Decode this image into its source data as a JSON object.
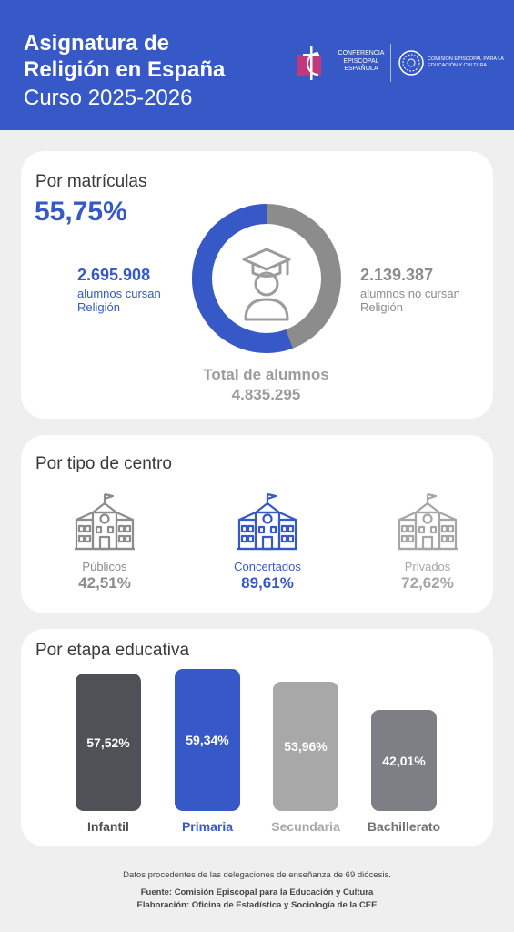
{
  "header": {
    "title_line1": "Asignatura de",
    "title_line2": "Religión en España",
    "subtitle": "Curso 2025-2026",
    "logo1_text": "CONFERENCIA EPISCOPAL ESPAÑOLA",
    "logo2_text": "COMISIÓN EPISCOPAL PARA LA EDUCACIÓN Y CULTURA"
  },
  "matriculas": {
    "title": "Por matrículas",
    "percent": "55,75%",
    "cursan_num": "2.695.908",
    "cursan_desc": "alumnos cursan Religión",
    "no_cursan_num": "2.139.387",
    "no_cursan_desc": "alumnos no cursan Religión",
    "total_label": "Total de alumnos",
    "total_value": "4.835.295",
    "share_cursan": 0.5575,
    "colors": {
      "cursan": "#3659c7",
      "no_cursan": "#8c8c8c"
    },
    "center_icon": "graduate-icon"
  },
  "tipo_centro": {
    "title": "Por tipo de centro",
    "items": [
      {
        "label": "Públicos",
        "pct": "42,51%",
        "color": "#8c8c8c",
        "icon": "school-building-icon"
      },
      {
        "label": "Concertados",
        "pct": "89,61%",
        "color": "#3659c7",
        "icon": "school-building-icon"
      },
      {
        "label": "Privados",
        "pct": "72,62%",
        "color": "#a6a6a6",
        "icon": "school-building-icon"
      }
    ]
  },
  "chart_data": {
    "type": "bar",
    "title": "Por etapa educativa",
    "categories": [
      "Infantil",
      "Primaria",
      "Secundaria",
      "Bachillerato"
    ],
    "values": [
      57.52,
      59.34,
      53.96,
      42.01
    ],
    "value_labels": [
      "57,52%",
      "59,34%",
      "53,96%",
      "42,01%"
    ],
    "colors": [
      "#4f5156",
      "#3659c7",
      "#a8a8a8",
      "#7d7f84"
    ],
    "label_colors": [
      "#4f5156",
      "#3659c7",
      "#a8a8a8",
      "#6f7176"
    ],
    "ylim": [
      0,
      60
    ],
    "grid": false,
    "xlabel": "",
    "ylabel": ""
  },
  "footer": {
    "line1": "Datos procedentes de las delegaciones de enseñanza de 69 diócesis.",
    "line2": "Fuente: Comisión Episcopal para la Educación y Cultura",
    "line3": "Elaboración: Oficina de Estadística y Sociología de la CEE"
  }
}
